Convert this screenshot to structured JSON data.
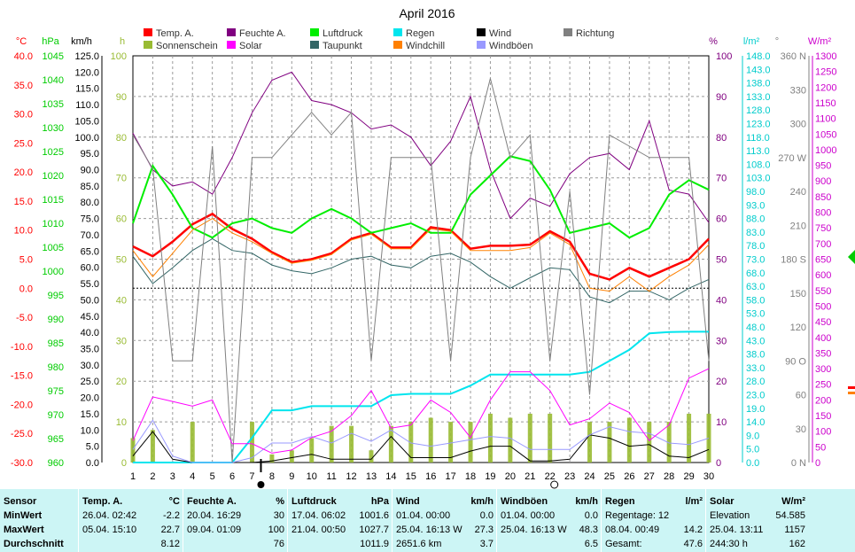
{
  "chart_data": {
    "type": "line",
    "title": "April 2016",
    "x": [
      1,
      2,
      3,
      4,
      5,
      6,
      7,
      8,
      9,
      10,
      11,
      12,
      13,
      14,
      15,
      16,
      17,
      18,
      19,
      20,
      21,
      22,
      23,
      24,
      25,
      26,
      27,
      28,
      29,
      30
    ],
    "axes": {
      "temp": {
        "unit": "°C",
        "color": "#ff0000",
        "min": -30,
        "max": 40,
        "ticks": [
          "40.0",
          "35.0",
          "30.0",
          "25.0",
          "20.0",
          "15.0",
          "10.0",
          "5.0",
          "0.0",
          "-5.0",
          "-10.0",
          "-15.0",
          "-20.0",
          "-25.0",
          "-30.0"
        ]
      },
      "pressure": {
        "unit": "hPa",
        "color": "#00cc00",
        "min": 960,
        "max": 1045,
        "ticks": [
          "1045",
          "1040",
          "1035",
          "1030",
          "1025",
          "1020",
          "1015",
          "1010",
          "1005",
          "1000",
          "995",
          "990",
          "985",
          "980",
          "975",
          "970",
          "965",
          "960"
        ]
      },
      "wind": {
        "unit": "km/h",
        "color": "#000000",
        "min": 0,
        "max": 125,
        "ticks": [
          "125.0",
          "120.0",
          "115.0",
          "110.0",
          "105.0",
          "100.0",
          "95.0",
          "90.0",
          "85.0",
          "80.0",
          "75.0",
          "70.0",
          "65.0",
          "60.0",
          "55.0",
          "50.0",
          "45.0",
          "40.0",
          "35.0",
          "30.0",
          "25.0",
          "20.0",
          "15.0",
          "10.0",
          "5.0",
          "0.0"
        ]
      },
      "sunshine": {
        "unit": "h",
        "color": "#99bb33",
        "min": 0,
        "max": 100,
        "ticks": [
          "100",
          "90",
          "80",
          "70",
          "60",
          "50",
          "40",
          "30",
          "20",
          "10",
          "0"
        ]
      },
      "humidity": {
        "unit": "%",
        "color": "#800080",
        "min": 0,
        "max": 100,
        "ticks": [
          "100",
          "90",
          "80",
          "70",
          "60",
          "50",
          "40",
          "30",
          "20",
          "10",
          "0"
        ]
      },
      "rain": {
        "unit": "l/m²",
        "color": "#00cccc",
        "min": 0,
        "max": 148,
        "ticks": [
          "148.0",
          "143.0",
          "138.0",
          "133.0",
          "128.0",
          "123.0",
          "118.0",
          "113.0",
          "108.0",
          "103.0",
          "98.0",
          "93.0",
          "88.0",
          "83.0",
          "78.0",
          "73.0",
          "68.0",
          "63.0",
          "58.0",
          "53.0",
          "48.0",
          "43.0",
          "38.0",
          "33.0",
          "28.0",
          "23.0",
          "19.0",
          "14.0",
          "9.0",
          "5.0",
          "0.0"
        ]
      },
      "direction": {
        "unit": "°",
        "color": "#808080",
        "min": 0,
        "max": 360,
        "ticks": [
          "360 N",
          "330",
          "300",
          "270 W",
          "240",
          "210",
          "180 S",
          "150",
          "120",
          "90 O",
          "60",
          "30",
          "0 N"
        ]
      },
      "solar": {
        "unit": "W/m²",
        "color": "#cc00cc",
        "min": 0,
        "max": 1300,
        "ticks": [
          "1300",
          "1250",
          "1200",
          "1150",
          "1100",
          "1050",
          "1000",
          "950",
          "900",
          "850",
          "800",
          "750",
          "700",
          "650",
          "600",
          "550",
          "500",
          "450",
          "400",
          "350",
          "300",
          "250",
          "200",
          "150",
          "100",
          "50",
          "0"
        ]
      }
    },
    "legend": [
      {
        "name": "Temp. A.",
        "color": "#ff0000"
      },
      {
        "name": "Feuchte A.",
        "color": "#800080"
      },
      {
        "name": "Luftdruck",
        "color": "#00ee00"
      },
      {
        "name": "Regen",
        "color": "#00e5ee"
      },
      {
        "name": "Wind",
        "color": "#000000"
      },
      {
        "name": "Richtung",
        "color": "#808080"
      },
      {
        "name": "Sonnenschein",
        "color": "#99bb33"
      },
      {
        "name": "Solar",
        "color": "#ff00ff"
      },
      {
        "name": "Taupunkt",
        "color": "#336666"
      },
      {
        "name": "Windchill",
        "color": "#ff8000"
      },
      {
        "name": "Windböen",
        "color": "#9999ff"
      }
    ],
    "series": [
      {
        "name": "Temp. A.",
        "axis": "temp",
        "color": "#ff0000",
        "width": 2.5,
        "values": [
          7.2,
          5.5,
          8.0,
          11.0,
          12.8,
          10.2,
          8.5,
          6.2,
          4.5,
          5.0,
          6.0,
          8.5,
          9.5,
          7.0,
          7.0,
          10.5,
          10.0,
          6.8,
          7.3,
          7.3,
          7.5,
          9.8,
          8.0,
          2.5,
          1.5,
          3.5,
          2.0,
          3.5,
          5.0,
          8.5
        ]
      },
      {
        "name": "Feuchte A.",
        "axis": "humidity",
        "color": "#800080",
        "width": 1,
        "values": [
          81,
          72,
          68,
          69,
          66,
          75,
          86,
          94,
          96,
          89,
          88,
          86,
          82,
          83,
          80,
          73,
          79,
          90,
          72,
          60,
          65,
          63,
          71,
          75,
          76,
          72,
          84,
          67,
          66,
          59
        ]
      },
      {
        "name": "Luftdruck",
        "axis": "pressure",
        "color": "#00ee00",
        "width": 2,
        "values": [
          1010,
          1022,
          1016,
          1009,
          1007,
          1010,
          1011,
          1009,
          1008,
          1011,
          1013,
          1011,
          1008,
          1009,
          1010,
          1008,
          1008,
          1016,
          1020,
          1024,
          1023,
          1017,
          1008,
          1009,
          1010,
          1007,
          1009,
          1016,
          1019,
          1017
        ]
      },
      {
        "name": "Taupunkt",
        "axis": "temp",
        "color": "#336666",
        "width": 1,
        "values": [
          5.5,
          0.8,
          3.5,
          6.5,
          8.5,
          6.5,
          6.0,
          4.0,
          3.0,
          2.5,
          3.5,
          5.0,
          5.5,
          4.0,
          3.5,
          5.5,
          6.0,
          4.5,
          2.0,
          0.0,
          1.8,
          3.5,
          3.2,
          -1.5,
          -2.5,
          -0.5,
          -0.5,
          -2.0,
          0.0,
          1.5
        ]
      },
      {
        "name": "Windchill",
        "axis": "temp",
        "color": "#ff8000",
        "width": 1,
        "values": [
          6.5,
          2.0,
          6.0,
          10.0,
          12.0,
          9.5,
          8.0,
          6.0,
          4.3,
          4.8,
          5.8,
          8.3,
          9.3,
          6.8,
          6.8,
          10.2,
          9.8,
          6.5,
          6.5,
          6.5,
          7.0,
          9.5,
          7.5,
          0.0,
          -0.5,
          2.0,
          -0.5,
          2.0,
          4.0,
          7.5
        ]
      },
      {
        "name": "Regen",
        "axis": "rain",
        "color": "#00e5ee",
        "width": 2,
        "values": [
          0,
          0,
          0,
          0,
          0,
          0,
          9.0,
          19.0,
          19.0,
          20.5,
          20.5,
          20.5,
          20.5,
          24.5,
          25.0,
          25.0,
          25.0,
          28.0,
          32.0,
          32.0,
          32.0,
          32.0,
          32.0,
          33.0,
          37.0,
          41.0,
          47.0,
          47.5,
          47.6,
          47.6
        ]
      },
      {
        "name": "Wind",
        "axis": "wind",
        "color": "#000000",
        "width": 1,
        "values": [
          2.0,
          9.5,
          1.0,
          0,
          0,
          0,
          0,
          0.5,
          1.5,
          2.5,
          1.0,
          1.0,
          1.0,
          8.0,
          1.5,
          1.5,
          1.5,
          3.5,
          5.0,
          5.0,
          0.5,
          0.5,
          1.0,
          8.5,
          7.5,
          5.0,
          5.5,
          2.0,
          1.5,
          4.0
        ]
      },
      {
        "name": "Windböen",
        "axis": "wind",
        "color": "#9999ff",
        "width": 1,
        "values": [
          4.0,
          13.0,
          2.0,
          0,
          0,
          0,
          1.5,
          6.0,
          6.0,
          8.0,
          6.0,
          9.0,
          6.5,
          10.0,
          6.0,
          5.0,
          6.0,
          7.0,
          8.0,
          7.5,
          4.0,
          4.0,
          4.0,
          8.5,
          11.0,
          9.5,
          9.0,
          6.0,
          5.5,
          7.5
        ]
      },
      {
        "name": "Richtung",
        "axis": "direction",
        "color": "#808080",
        "width": 1,
        "values": [
          290,
          260,
          90,
          90,
          280,
          0,
          270,
          270,
          290,
          310,
          290,
          310,
          90,
          270,
          270,
          270,
          90,
          270,
          340,
          270,
          290,
          90,
          240,
          60,
          290,
          280,
          270,
          270,
          270,
          90
        ]
      },
      {
        "name": "Solar",
        "axis": "solar",
        "color": "#ff00ff",
        "width": 1,
        "values": [
          70,
          210,
          195,
          180,
          200,
          60,
          60,
          30,
          40,
          80,
          100,
          150,
          230,
          110,
          120,
          200,
          160,
          80,
          200,
          290,
          290,
          230,
          120,
          140,
          190,
          160,
          70,
          120,
          270,
          300
        ]
      }
    ],
    "sunshine_bars": [
      6,
      8,
      0,
      10,
      0,
      0,
      10,
      2,
      3,
      6,
      9,
      9,
      3,
      9,
      10,
      11,
      10,
      10,
      12,
      11,
      12,
      12,
      0,
      10,
      10,
      11,
      10,
      10,
      12,
      12
    ],
    "x_markers": {
      "new_moon_day": 7,
      "full_moon_day": 22
    }
  },
  "stats": {
    "headers": [
      "Sensor",
      "Temp. A.",
      "°C",
      "Feuchte A.",
      "%",
      "Luftdruck",
      "hPa",
      "Wind",
      "km/h",
      "Windböen",
      "km/h",
      "Regen",
      "l/m²",
      "Solar",
      "W/m²"
    ],
    "row_labels": [
      "MinWert",
      "MaxWert",
      "Durchschnitt"
    ],
    "temp": [
      [
        "26.04. 02:42",
        "-2.2"
      ],
      [
        "05.04. 15:10",
        "22.7"
      ],
      [
        "",
        "8.12"
      ]
    ],
    "humidity": [
      [
        "20.04. 16:29",
        "30"
      ],
      [
        "09.04. 01:09",
        "100"
      ],
      [
        "",
        "76"
      ]
    ],
    "pressure": [
      [
        "17.04. 06:02",
        "1001.6"
      ],
      [
        "21.04. 00:50",
        "1027.7"
      ],
      [
        "",
        "1011.9"
      ]
    ],
    "wind": [
      [
        "01.04. 00:00",
        "0.0"
      ],
      [
        "25.04. 16:13 W",
        "27.3"
      ],
      [
        "2651.6 km",
        "3.7"
      ]
    ],
    "gust": [
      [
        "01.04. 00:00",
        "0.0"
      ],
      [
        "25.04. 16:13 W",
        "48.3"
      ],
      [
        "",
        "6.5"
      ]
    ],
    "rain": [
      [
        "Regentage: 12",
        ""
      ],
      [
        "08.04. 00:49",
        "14.2"
      ],
      [
        "Gesamt:",
        "47.6"
      ]
    ],
    "solar": [
      [
        "Elevation",
        "54.585"
      ],
      [
        "25.04. 13:11",
        "1157"
      ],
      [
        "244:30 h",
        "162"
      ]
    ]
  }
}
